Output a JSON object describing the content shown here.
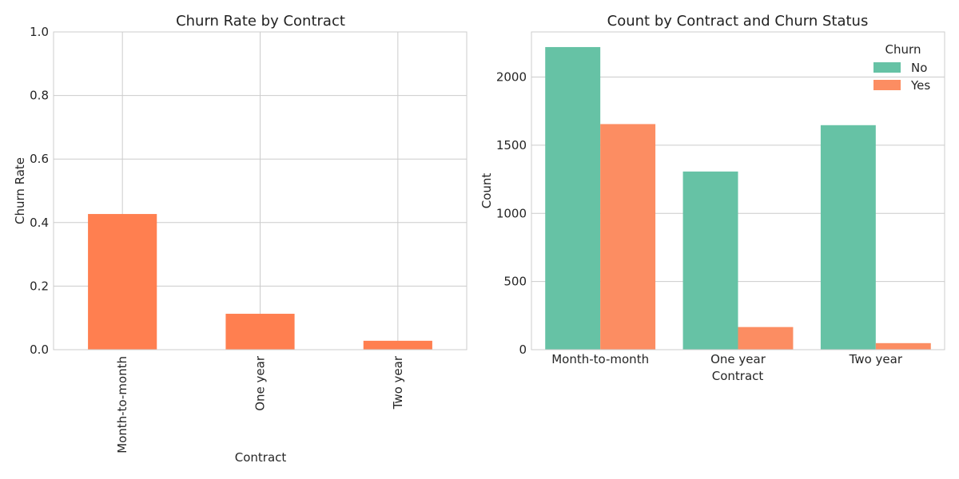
{
  "chart_data": [
    {
      "type": "bar",
      "title": "Churn Rate by Contract",
      "xlabel": "Contract",
      "ylabel": "Churn Rate",
      "categories": [
        "Month-to-month",
        "One year",
        "Two year"
      ],
      "values": [
        0.427,
        0.113,
        0.028
      ],
      "ylim": [
        0,
        1.0
      ],
      "yticks": [
        "0.0",
        "0.2",
        "0.4",
        "0.6",
        "0.8",
        "1.0"
      ],
      "grid": true,
      "bar_color": "#ff7f50"
    },
    {
      "type": "bar",
      "title": "Count by Contract and Churn Status",
      "xlabel": "Contract",
      "ylabel": "Count",
      "categories": [
        "Month-to-month",
        "One year",
        "Two year"
      ],
      "series": [
        {
          "name": "No",
          "values": [
            2220,
            1307,
            1647
          ],
          "color": "#66c2a5"
        },
        {
          "name": "Yes",
          "values": [
            1655,
            166,
            48
          ],
          "color": "#fc8d62"
        }
      ],
      "ylim": [
        0,
        2331
      ],
      "yticks": [
        "0",
        "500",
        "1000",
        "1500",
        "2000"
      ],
      "legend": {
        "title": "Churn",
        "position": "top-right"
      },
      "grid": true
    }
  ]
}
